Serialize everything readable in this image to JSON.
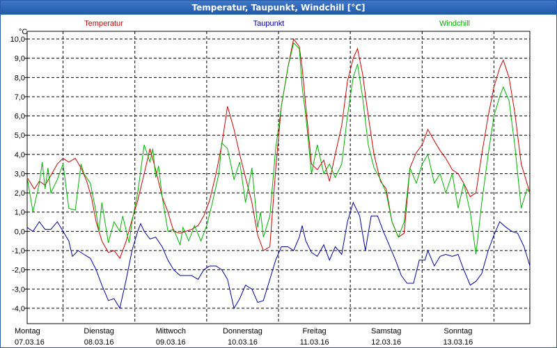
{
  "window": {
    "title": "Temperatur, Taupunkt, Windchill [°C]"
  },
  "chart_data": {
    "type": "line",
    "title": "Temperatur, Taupunkt, Windchill [°C]",
    "ylabel": "°C",
    "xlabel": "",
    "ylim": [
      -4.8,
      10.4
    ],
    "xlim": [
      0,
      7
    ],
    "grid": true,
    "legend_position": "top",
    "y_ticks": [
      "10,0",
      "9,0",
      "8,0",
      "7,0",
      "6,0",
      "5,0",
      "4,0",
      "3,0",
      "2,0",
      "1,0",
      "0,0",
      "-1,0",
      "-2,0",
      "-3,0",
      "-4,0"
    ],
    "y_tick_values": [
      10,
      9,
      8,
      7,
      6,
      5,
      4,
      3,
      2,
      1,
      0,
      -1,
      -2,
      -3,
      -4
    ],
    "x_ticks": [
      {
        "day": "Montag",
        "date": "07.03.16"
      },
      {
        "day": "Dienstag",
        "date": "08.03.16"
      },
      {
        "day": "Mittwoch",
        "date": "09.03.16"
      },
      {
        "day": "Donnerstag",
        "date": "10.03.16"
      },
      {
        "day": "Freitag",
        "date": "11.03.16"
      },
      {
        "day": "Samstag",
        "date": "12.03.16"
      },
      {
        "day": "Sonntag",
        "date": "13.03.16"
      }
    ],
    "series": [
      {
        "name": "Temperatur",
        "color": "#cc0000",
        "points": [
          [
            0,
            2.8
          ],
          [
            0.1,
            2.2
          ],
          [
            0.17,
            2.6
          ],
          [
            0.25,
            2.4
          ],
          [
            0.33,
            2.9
          ],
          [
            0.42,
            3.5
          ],
          [
            0.5,
            3.8
          ],
          [
            0.58,
            3.6
          ],
          [
            0.67,
            3.8
          ],
          [
            0.75,
            3.3
          ],
          [
            0.83,
            2.6
          ],
          [
            0.9,
            1.7
          ],
          [
            0.96,
            0.5
          ],
          [
            1.04,
            -0.5
          ],
          [
            1.13,
            -1.1
          ],
          [
            1.21,
            -1.0
          ],
          [
            1.29,
            -1.4
          ],
          [
            1.38,
            -0.5
          ],
          [
            1.46,
            0.6
          ],
          [
            1.54,
            1.6
          ],
          [
            1.63,
            3.0
          ],
          [
            1.71,
            4.3
          ],
          [
            1.79,
            3.2
          ],
          [
            1.88,
            1.8
          ],
          [
            1.96,
            1.0
          ],
          [
            2.04,
            0.0
          ],
          [
            2.13,
            -0.1
          ],
          [
            2.21,
            0.0
          ],
          [
            2.29,
            0.1
          ],
          [
            2.38,
            0.3
          ],
          [
            2.46,
            0.8
          ],
          [
            2.54,
            1.6
          ],
          [
            2.63,
            3.0
          ],
          [
            2.71,
            4.5
          ],
          [
            2.79,
            6.5
          ],
          [
            2.88,
            5.3
          ],
          [
            2.96,
            4.0
          ],
          [
            3.04,
            2.8
          ],
          [
            3.13,
            1.5
          ],
          [
            3.21,
            -0.2
          ],
          [
            3.29,
            -1.0
          ],
          [
            3.38,
            -0.8
          ],
          [
            3.46,
            3.2
          ],
          [
            3.54,
            6.5
          ],
          [
            3.63,
            8.5
          ],
          [
            3.71,
            10.0
          ],
          [
            3.79,
            9.6
          ],
          [
            3.83,
            8.5
          ],
          [
            3.88,
            6.5
          ],
          [
            3.96,
            3.5
          ],
          [
            4.04,
            3.2
          ],
          [
            4.13,
            3.7
          ],
          [
            4.21,
            2.6
          ],
          [
            4.29,
            4.0
          ],
          [
            4.38,
            5.5
          ],
          [
            4.46,
            7.8
          ],
          [
            4.54,
            9.0
          ],
          [
            4.6,
            9.5
          ],
          [
            4.67,
            8.2
          ],
          [
            4.75,
            6.0
          ],
          [
            4.83,
            4.0
          ],
          [
            4.92,
            2.6
          ],
          [
            5.0,
            2.2
          ],
          [
            5.08,
            0.5
          ],
          [
            5.17,
            -0.3
          ],
          [
            5.25,
            -0.1
          ],
          [
            5.33,
            3.3
          ],
          [
            5.42,
            4.1
          ],
          [
            5.5,
            4.5
          ],
          [
            5.58,
            5.3
          ],
          [
            5.67,
            4.7
          ],
          [
            5.75,
            4.2
          ],
          [
            5.83,
            3.8
          ],
          [
            5.92,
            3.2
          ],
          [
            6.0,
            3.0
          ],
          [
            6.08,
            2.5
          ],
          [
            6.17,
            1.8
          ],
          [
            6.25,
            2.0
          ],
          [
            6.33,
            4.0
          ],
          [
            6.42,
            6.0
          ],
          [
            6.5,
            7.5
          ],
          [
            6.58,
            8.5
          ],
          [
            6.63,
            8.9
          ],
          [
            6.71,
            8.0
          ],
          [
            6.79,
            6.2
          ],
          [
            6.88,
            3.5
          ],
          [
            6.96,
            2.5
          ],
          [
            7.0,
            2.0
          ]
        ]
      },
      {
        "name": "Taupunkt",
        "color": "#00009c",
        "points": [
          [
            0,
            0.2
          ],
          [
            0.08,
            0.0
          ],
          [
            0.17,
            0.5
          ],
          [
            0.25,
            0.1
          ],
          [
            0.33,
            0.1
          ],
          [
            0.42,
            0.5
          ],
          [
            0.5,
            0.0
          ],
          [
            0.58,
            -0.5
          ],
          [
            0.63,
            -1.3
          ],
          [
            0.71,
            -1.0
          ],
          [
            0.79,
            -1.2
          ],
          [
            0.88,
            -1.4
          ],
          [
            0.96,
            -2.0
          ],
          [
            1.04,
            -2.8
          ],
          [
            1.13,
            -3.6
          ],
          [
            1.21,
            -3.5
          ],
          [
            1.29,
            -4.0
          ],
          [
            1.38,
            -2.5
          ],
          [
            1.46,
            -1.0
          ],
          [
            1.54,
            0.0
          ],
          [
            1.58,
            0.4
          ],
          [
            1.63,
            0.0
          ],
          [
            1.71,
            -0.4
          ],
          [
            1.79,
            -0.3
          ],
          [
            1.88,
            -0.8
          ],
          [
            1.96,
            -1.5
          ],
          [
            2.04,
            -2.0
          ],
          [
            2.13,
            -2.3
          ],
          [
            2.21,
            -2.3
          ],
          [
            2.29,
            -2.3
          ],
          [
            2.38,
            -2.5
          ],
          [
            2.46,
            -2.0
          ],
          [
            2.54,
            -1.8
          ],
          [
            2.63,
            -1.8
          ],
          [
            2.71,
            -2.0
          ],
          [
            2.79,
            -2.5
          ],
          [
            2.88,
            -4.0
          ],
          [
            2.96,
            -3.5
          ],
          [
            3.04,
            -2.8
          ],
          [
            3.13,
            -3.0
          ],
          [
            3.21,
            -3.7
          ],
          [
            3.29,
            -3.6
          ],
          [
            3.38,
            -2.5
          ],
          [
            3.46,
            -1.5
          ],
          [
            3.54,
            -0.8
          ],
          [
            3.63,
            -0.8
          ],
          [
            3.71,
            -1.0
          ],
          [
            3.79,
            -0.3
          ],
          [
            3.83,
            0.3
          ],
          [
            3.88,
            -0.5
          ],
          [
            3.96,
            -1.1
          ],
          [
            4.04,
            -1.3
          ],
          [
            4.13,
            -0.7
          ],
          [
            4.21,
            -1.5
          ],
          [
            4.29,
            -0.8
          ],
          [
            4.38,
            -1.2
          ],
          [
            4.46,
            0.5
          ],
          [
            4.54,
            1.5
          ],
          [
            4.63,
            0.8
          ],
          [
            4.71,
            -1.0
          ],
          [
            4.79,
            0.8
          ],
          [
            4.88,
            0.8
          ],
          [
            4.96,
            0.0
          ],
          [
            5.04,
            -0.7
          ],
          [
            5.13,
            -1.5
          ],
          [
            5.21,
            -2.3
          ],
          [
            5.29,
            -2.7
          ],
          [
            5.38,
            -2.7
          ],
          [
            5.46,
            -1.5
          ],
          [
            5.54,
            -1.5
          ],
          [
            5.58,
            -1.0
          ],
          [
            5.67,
            -1.8
          ],
          [
            5.75,
            -1.3
          ],
          [
            5.83,
            -1.2
          ],
          [
            5.92,
            -1.3
          ],
          [
            6.0,
            -1.2
          ],
          [
            6.08,
            -2.0
          ],
          [
            6.17,
            -2.8
          ],
          [
            6.25,
            -2.6
          ],
          [
            6.33,
            -2.2
          ],
          [
            6.42,
            -1.0
          ],
          [
            6.5,
            -0.2
          ],
          [
            6.58,
            0.5
          ],
          [
            6.67,
            0.2
          ],
          [
            6.75,
            0.0
          ],
          [
            6.83,
            -0.1
          ],
          [
            6.92,
            -0.8
          ],
          [
            7.0,
            -1.8
          ]
        ]
      },
      {
        "name": "Windchill",
        "color": "#00b000",
        "points": [
          [
            0,
            2.8
          ],
          [
            0.08,
            1.0
          ],
          [
            0.17,
            2.5
          ],
          [
            0.21,
            3.6
          ],
          [
            0.25,
            2.2
          ],
          [
            0.29,
            3.3
          ],
          [
            0.33,
            2.0
          ],
          [
            0.42,
            2.7
          ],
          [
            0.5,
            3.5
          ],
          [
            0.58,
            1.2
          ],
          [
            0.67,
            1.1
          ],
          [
            0.75,
            3.5
          ],
          [
            0.79,
            3.0
          ],
          [
            0.88,
            2.5
          ],
          [
            0.96,
            1.0
          ],
          [
            1.0,
            0.0
          ],
          [
            1.04,
            1.5
          ],
          [
            1.13,
            -0.6
          ],
          [
            1.21,
            0.5
          ],
          [
            1.29,
            0.0
          ],
          [
            1.33,
            0.8
          ],
          [
            1.42,
            -0.6
          ],
          [
            1.46,
            0.5
          ],
          [
            1.54,
            2.0
          ],
          [
            1.63,
            4.5
          ],
          [
            1.71,
            3.6
          ],
          [
            1.75,
            4.3
          ],
          [
            1.79,
            2.8
          ],
          [
            1.83,
            3.4
          ],
          [
            1.88,
            1.8
          ],
          [
            1.96,
            0.0
          ],
          [
            2.04,
            0.1
          ],
          [
            2.13,
            -0.7
          ],
          [
            2.17,
            0.2
          ],
          [
            2.25,
            -0.5
          ],
          [
            2.33,
            0.3
          ],
          [
            2.42,
            -0.5
          ],
          [
            2.5,
            0.3
          ],
          [
            2.58,
            1.5
          ],
          [
            2.67,
            3.0
          ],
          [
            2.71,
            4.6
          ],
          [
            2.79,
            4.3
          ],
          [
            2.88,
            2.7
          ],
          [
            2.96,
            3.6
          ],
          [
            3.04,
            1.5
          ],
          [
            3.13,
            3.3
          ],
          [
            3.21,
            0.2
          ],
          [
            3.25,
            1.0
          ],
          [
            3.29,
            -0.3
          ],
          [
            3.38,
            0.8
          ],
          [
            3.46,
            4.3
          ],
          [
            3.54,
            6.5
          ],
          [
            3.63,
            8.5
          ],
          [
            3.71,
            9.8
          ],
          [
            3.79,
            9.5
          ],
          [
            3.83,
            7.5
          ],
          [
            3.88,
            6.0
          ],
          [
            3.96,
            3.0
          ],
          [
            4.04,
            4.5
          ],
          [
            4.13,
            3.0
          ],
          [
            4.21,
            3.5
          ],
          [
            4.29,
            2.8
          ],
          [
            4.38,
            3.5
          ],
          [
            4.46,
            6.0
          ],
          [
            4.54,
            8.0
          ],
          [
            4.6,
            8.7
          ],
          [
            4.67,
            7.0
          ],
          [
            4.75,
            4.5
          ],
          [
            4.83,
            3.3
          ],
          [
            4.92,
            2.7
          ],
          [
            5.0,
            2.0
          ],
          [
            5.08,
            0.5
          ],
          [
            5.17,
            -0.3
          ],
          [
            5.25,
            0.5
          ],
          [
            5.33,
            3.3
          ],
          [
            5.42,
            2.5
          ],
          [
            5.5,
            3.5
          ],
          [
            5.58,
            4.0
          ],
          [
            5.67,
            2.5
          ],
          [
            5.75,
            3.0
          ],
          [
            5.83,
            2.0
          ],
          [
            5.92,
            3.0
          ],
          [
            6.0,
            1.2
          ],
          [
            6.08,
            2.5
          ],
          [
            6.17,
            1.0
          ],
          [
            6.25,
            -1.2
          ],
          [
            6.33,
            1.5
          ],
          [
            6.42,
            4.0
          ],
          [
            6.5,
            6.0
          ],
          [
            6.58,
            7.0
          ],
          [
            6.63,
            7.5
          ],
          [
            6.71,
            6.8
          ],
          [
            6.79,
            4.5
          ],
          [
            6.88,
            1.2
          ],
          [
            6.96,
            2.2
          ],
          [
            7.0,
            2.0
          ]
        ]
      }
    ]
  }
}
